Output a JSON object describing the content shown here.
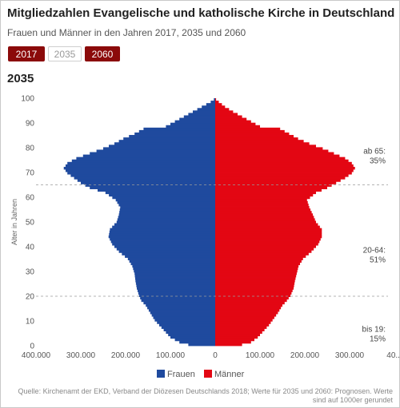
{
  "header": {
    "title": "Mitgliedzahlen Evangelische und katholische Kirche in Deutschland",
    "subtitle": "Frauen und Männer in den Jahren 2017, 2035 und 2060"
  },
  "year_buttons": [
    {
      "label": "2017",
      "active": true
    },
    {
      "label": "2035",
      "active": false
    },
    {
      "label": "2060",
      "active": true
    }
  ],
  "selected_year": "2035",
  "colors": {
    "frauen": "#1f4a9e",
    "maenner": "#e30613",
    "button_active": "#8b0a0a"
  },
  "chart_data": {
    "type": "bar",
    "orientation": "horizontal-pyramid",
    "title": "2035",
    "ylabel": "Alter in Jahren",
    "xlim": [
      -400000,
      400000
    ],
    "ylim": [
      0,
      100
    ],
    "x_tick_labels": [
      "400.000",
      "300.000",
      "200.000",
      "100.000",
      "0",
      "100.000",
      "200.000",
      "300.000",
      "40..."
    ],
    "y_ticks": [
      0,
      10,
      20,
      30,
      40,
      50,
      60,
      70,
      80,
      90,
      100
    ],
    "legend": {
      "position": "bottom",
      "entries": [
        "Frauen",
        "Männer"
      ]
    },
    "age_groups": [
      {
        "label": "ab 65:",
        "value": "35%",
        "boundary_age": 65
      },
      {
        "label": "20-64:",
        "value": "51%",
        "boundary_age": 20
      },
      {
        "label": "bis 19:",
        "value": "15%"
      }
    ],
    "series": [
      {
        "name": "Frauen",
        "points": [
          [
            0,
            60000
          ],
          [
            1,
            80000
          ],
          [
            3,
            100000
          ],
          [
            5,
            110000
          ],
          [
            8,
            125000
          ],
          [
            10,
            135000
          ],
          [
            13,
            145000
          ],
          [
            16,
            155000
          ],
          [
            18,
            165000
          ],
          [
            20,
            170000
          ],
          [
            23,
            175000
          ],
          [
            26,
            178000
          ],
          [
            29,
            180000
          ],
          [
            32,
            185000
          ],
          [
            35,
            195000
          ],
          [
            38,
            215000
          ],
          [
            41,
            230000
          ],
          [
            44,
            238000
          ],
          [
            47,
            235000
          ],
          [
            50,
            220000
          ],
          [
            53,
            215000
          ],
          [
            56,
            212000
          ],
          [
            59,
            222000
          ],
          [
            62,
            245000
          ],
          [
            64,
            280000
          ],
          [
            66,
            300000
          ],
          [
            68,
            315000
          ],
          [
            70,
            330000
          ],
          [
            72,
            338000
          ],
          [
            74,
            330000
          ],
          [
            76,
            310000
          ],
          [
            78,
            280000
          ],
          [
            80,
            250000
          ],
          [
            82,
            225000
          ],
          [
            84,
            205000
          ],
          [
            86,
            180000
          ],
          [
            88,
            160000
          ],
          [
            89,
            110000
          ],
          [
            91,
            90000
          ],
          [
            93,
            70000
          ],
          [
            95,
            50000
          ],
          [
            97,
            30000
          ],
          [
            99,
            10000
          ],
          [
            100,
            3000
          ]
        ]
      },
      {
        "name": "Männer",
        "points": [
          [
            0,
            60000
          ],
          [
            1,
            80000
          ],
          [
            3,
            95000
          ],
          [
            5,
            105000
          ],
          [
            8,
            120000
          ],
          [
            10,
            128000
          ],
          [
            13,
            140000
          ],
          [
            16,
            150000
          ],
          [
            18,
            160000
          ],
          [
            20,
            168000
          ],
          [
            23,
            175000
          ],
          [
            26,
            178000
          ],
          [
            29,
            182000
          ],
          [
            32,
            186000
          ],
          [
            35,
            196000
          ],
          [
            38,
            215000
          ],
          [
            41,
            230000
          ],
          [
            44,
            238000
          ],
          [
            47,
            238000
          ],
          [
            50,
            225000
          ],
          [
            53,
            218000
          ],
          [
            56,
            210000
          ],
          [
            59,
            205000
          ],
          [
            62,
            225000
          ],
          [
            64,
            250000
          ],
          [
            66,
            270000
          ],
          [
            68,
            290000
          ],
          [
            70,
            305000
          ],
          [
            72,
            312000
          ],
          [
            74,
            305000
          ],
          [
            76,
            290000
          ],
          [
            78,
            265000
          ],
          [
            80,
            240000
          ],
          [
            82,
            210000
          ],
          [
            84,
            185000
          ],
          [
            86,
            165000
          ],
          [
            88,
            145000
          ],
          [
            89,
            100000
          ],
          [
            91,
            80000
          ],
          [
            93,
            60000
          ],
          [
            95,
            40000
          ],
          [
            97,
            22000
          ],
          [
            99,
            8000
          ],
          [
            100,
            2000
          ]
        ]
      }
    ]
  },
  "source": "Quelle: Kirchenamt der EKD, Verband der Diözesen Deutschlands 2018; Werte für 2035 und 2060: Prognosen. Werte sind auf 1000er gerundet"
}
